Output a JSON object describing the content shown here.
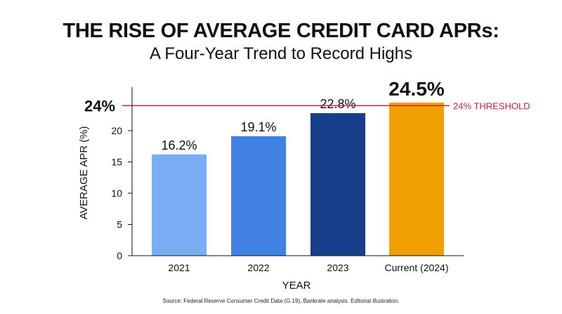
{
  "title": "THE RISE OF AVERAGE CREDIT CARD APRs:",
  "subtitle": "A Four-Year Trend to Record Highs",
  "source": "Source: Federal Reserve Consumer Credit Data (G.19), Bankrate analysis. Editorial illustration.",
  "chart_data": {
    "type": "bar",
    "categories": [
      "2021",
      "2022",
      "2023",
      "Current (2024)"
    ],
    "values": [
      16.2,
      19.1,
      22.8,
      24.5
    ],
    "value_labels": [
      "16.2%",
      "19.1%",
      "22.8%",
      "24.5%"
    ],
    "colors": [
      "#7aaef4",
      "#3f82e4",
      "#173f8c",
      "#f0a000"
    ],
    "xlabel": "YEAR",
    "ylabel": "AVERAGE APR (%)",
    "ylim": [
      0,
      26
    ],
    "yticks": [
      0,
      5,
      10,
      15,
      20
    ],
    "threshold": {
      "value": 24,
      "label": "24% THRESHOLD",
      "axis_label": "24%",
      "color": "#c0283a"
    },
    "grid": false
  }
}
